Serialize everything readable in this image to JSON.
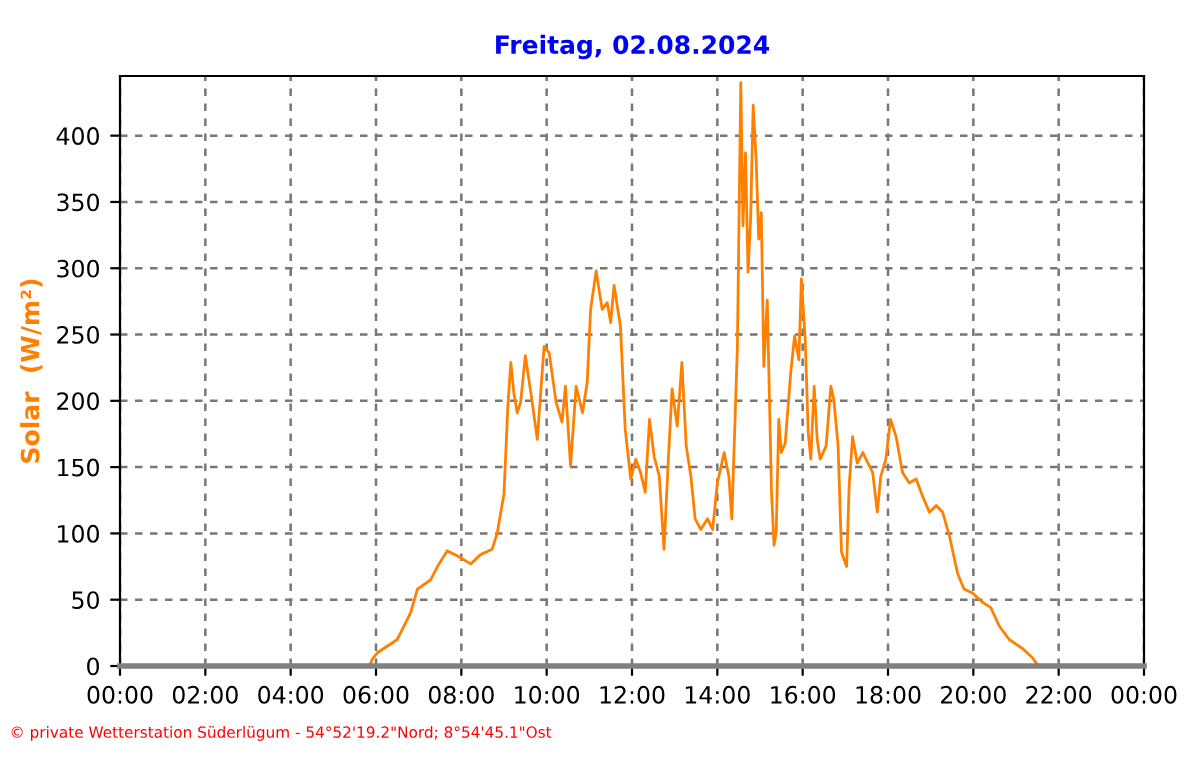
{
  "chart_data": {
    "type": "line",
    "title": "Freitag, 02.08.2024",
    "ylabel": "Solar  (W/m²)",
    "annotations": [
      "© private Wetterstation Süderlügum - 54°52'19.2\"Nord; 8°54'45.1\"Ost"
    ],
    "series": [
      {
        "color": "#ff8000",
        "x": [
          0,
          5.85,
          5.91,
          6.03,
          6.5,
          6.81,
          6.97,
          7.28,
          7.44,
          7.67,
          7.91,
          8.22,
          8.45,
          8.72,
          8.84,
          9.0,
          9.09,
          9.16,
          9.23,
          9.31,
          9.39,
          9.5,
          9.63,
          9.78,
          9.94,
          10.06,
          10.22,
          10.36,
          10.44,
          10.56,
          10.69,
          10.84,
          10.95,
          11.03,
          11.16,
          11.3,
          11.42,
          11.5,
          11.58,
          11.73,
          11.84,
          11.97,
          12.09,
          12.2,
          12.31,
          12.41,
          12.52,
          12.64,
          12.75,
          12.86,
          12.94,
          13.06,
          13.17,
          13.27,
          13.38,
          13.48,
          13.61,
          13.77,
          13.89,
          14.0,
          14.16,
          14.27,
          14.34,
          14.47,
          14.55,
          14.6,
          14.66,
          14.72,
          14.78,
          14.84,
          14.91,
          14.97,
          15.03,
          15.09,
          15.17,
          15.27,
          15.33,
          15.38,
          15.44,
          15.5,
          15.59,
          15.72,
          15.81,
          15.91,
          15.97,
          16.06,
          16.13,
          16.19,
          16.27,
          16.34,
          16.41,
          16.55,
          16.66,
          16.73,
          16.83,
          16.91,
          17.03,
          17.09,
          17.17,
          17.28,
          17.41,
          17.53,
          17.64,
          17.75,
          17.83,
          17.95,
          18.06,
          18.19,
          18.34,
          18.5,
          18.66,
          18.81,
          18.97,
          19.13,
          19.28,
          19.44,
          19.63,
          19.78,
          19.98,
          20.22,
          20.41,
          20.61,
          20.84,
          21.16,
          21.39,
          21.5,
          21.63,
          24
        ],
        "values": [
          0,
          0,
          5,
          10,
          20,
          40,
          58,
          65,
          75,
          87,
          83,
          77,
          84,
          88,
          100,
          130,
          196,
          229,
          206,
          191,
          199,
          234,
          206,
          171,
          241,
          236,
          199,
          184,
          211,
          151,
          211,
          191,
          214,
          269,
          298,
          269,
          274,
          259,
          287,
          256,
          179,
          141,
          156,
          146,
          131,
          186,
          158,
          143,
          88,
          161,
          209,
          181,
          229,
          166,
          143,
          111,
          103,
          111,
          103,
          138,
          161,
          143,
          111,
          241,
          440,
          332,
          387,
          297,
          337,
          423,
          382,
          322,
          342,
          226,
          276,
          131,
          91,
          101,
          186,
          161,
          168,
          221,
          249,
          231,
          292,
          246,
          176,
          156,
          211,
          171,
          156,
          166,
          211,
          201,
          166,
          86,
          75,
          136,
          173,
          153,
          161,
          153,
          146,
          116,
          143,
          156,
          186,
          173,
          146,
          138,
          141,
          128,
          116,
          121,
          116,
          98,
          70,
          58,
          55,
          48,
          44,
          30,
          20,
          13,
          6,
          1,
          0,
          0
        ]
      }
    ],
    "xlim": [
      0,
      24
    ],
    "xticks": [
      {
        "value": 0,
        "label": "00:00"
      },
      {
        "value": 2,
        "label": "02:00"
      },
      {
        "value": 4,
        "label": "04:00"
      },
      {
        "value": 6,
        "label": "06:00"
      },
      {
        "value": 8,
        "label": "08:00"
      },
      {
        "value": 10,
        "label": "10:00"
      },
      {
        "value": 12,
        "label": "12:00"
      },
      {
        "value": 14,
        "label": "14:00"
      },
      {
        "value": 16,
        "label": "16:00"
      },
      {
        "value": 18,
        "label": "18:00"
      },
      {
        "value": 20,
        "label": "20:00"
      },
      {
        "value": 22,
        "label": "22:00"
      },
      {
        "value": 24,
        "label": "00:00"
      }
    ],
    "ylim": [
      0,
      445
    ],
    "yticks": [
      0,
      50,
      100,
      150,
      200,
      250,
      300,
      350,
      400
    ],
    "grid": true,
    "line_style": "solid"
  }
}
